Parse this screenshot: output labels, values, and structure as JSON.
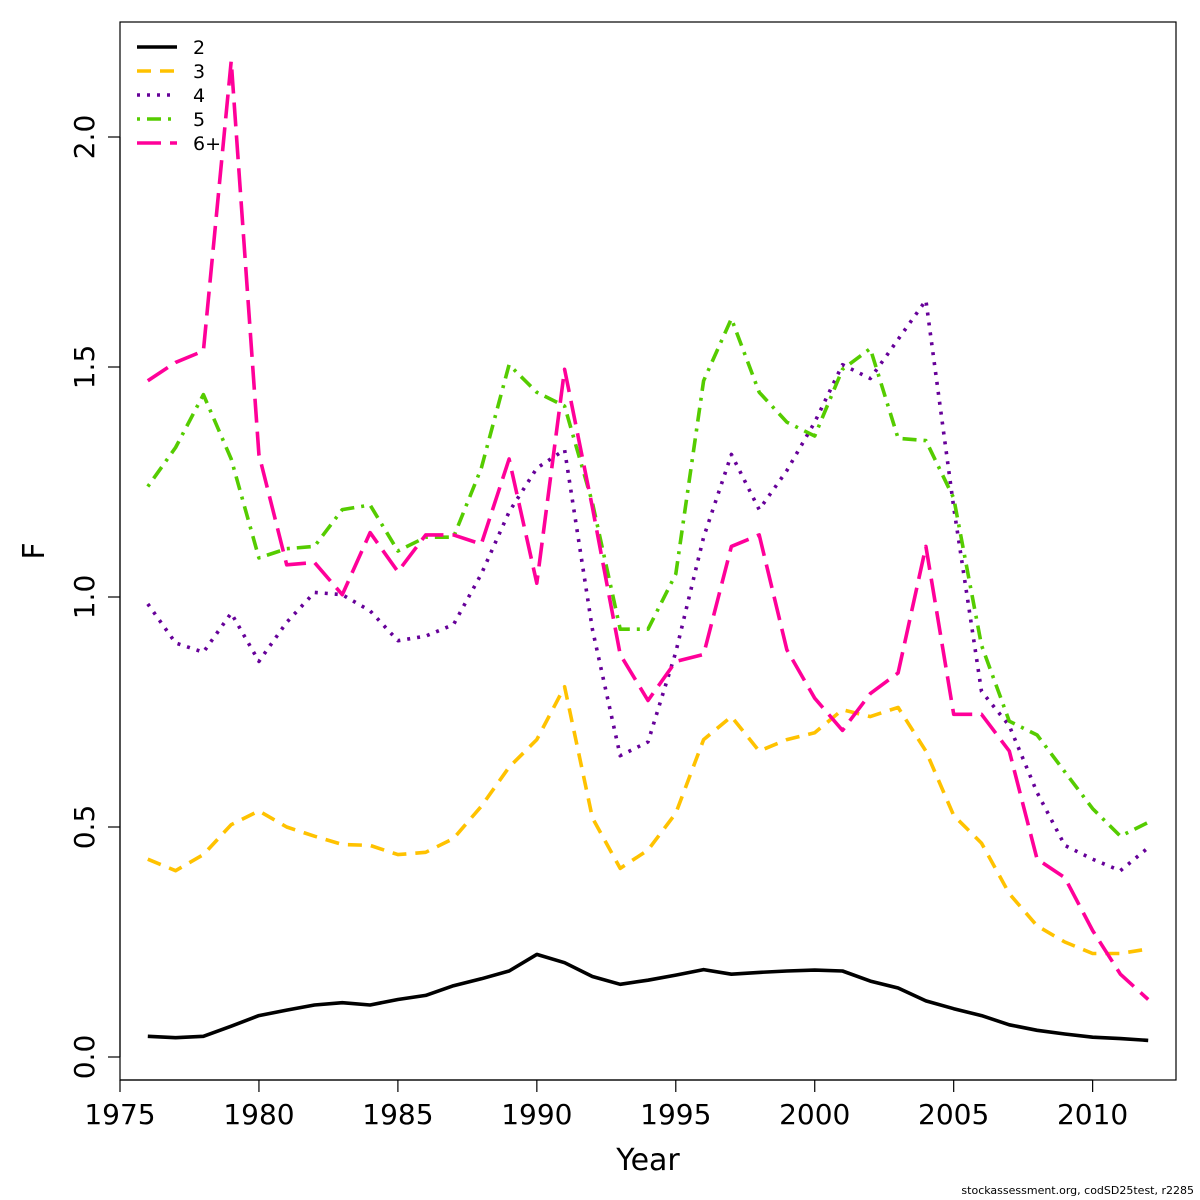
{
  "chart_data": {
    "type": "line",
    "xlabel": "Year",
    "ylabel": "F",
    "xlim": [
      1975,
      2013
    ],
    "ylim": [
      -0.05,
      2.25
    ],
    "x_ticks": [
      1975,
      1980,
      1985,
      1990,
      1995,
      2000,
      2005,
      2010
    ],
    "x_tick_labels": [
      "1975",
      "1980",
      "1985",
      "1990",
      "1995",
      "2000",
      "2005",
      "2010"
    ],
    "y_ticks": [
      0,
      0.5,
      1,
      1.5,
      2
    ],
    "y_tick_labels": [
      "0.0",
      "0.5",
      "1.0",
      "1.5",
      "2.0"
    ],
    "grid": false,
    "legend_position": "top-left",
    "x": [
      1976,
      1977,
      1978,
      1979,
      1980,
      1981,
      1982,
      1983,
      1984,
      1985,
      1986,
      1987,
      1988,
      1989,
      1990,
      1991,
      1992,
      1993,
      1994,
      1995,
      1996,
      1997,
      1998,
      1999,
      2000,
      2001,
      2002,
      2003,
      2004,
      2005,
      2006,
      2007,
      2008,
      2009,
      2010,
      2011,
      2012
    ],
    "series": [
      {
        "name": "2",
        "color": "#000000",
        "dash": "solid",
        "values": [
          0.045,
          0.042,
          0.045,
          0.067,
          0.09,
          0.102,
          0.113,
          0.118,
          0.113,
          0.125,
          0.134,
          0.155,
          0.17,
          0.187,
          0.223,
          0.205,
          0.175,
          0.158,
          0.167,
          0.178,
          0.19,
          0.18,
          0.184,
          0.187,
          0.189,
          0.187,
          0.165,
          0.15,
          0.122,
          0.105,
          0.09,
          0.07,
          0.058,
          0.05,
          0.043,
          0.04,
          0.036
        ]
      },
      {
        "name": "3",
        "color": "#FFC200",
        "dash": "dashed",
        "values": [
          0.43,
          0.405,
          0.44,
          0.505,
          0.535,
          0.5,
          0.48,
          0.462,
          0.46,
          0.44,
          0.445,
          0.475,
          0.545,
          0.63,
          0.69,
          0.805,
          0.52,
          0.41,
          0.45,
          0.53,
          0.69,
          0.74,
          0.665,
          0.69,
          0.705,
          0.755,
          0.74,
          0.76,
          0.665,
          0.525,
          0.465,
          0.355,
          0.285,
          0.25,
          0.225,
          0.225,
          0.235
        ]
      },
      {
        "name": "4",
        "color": "#660099",
        "dash": "dotted",
        "values": [
          0.985,
          0.9,
          0.88,
          0.965,
          0.86,
          0.945,
          1.01,
          1.005,
          0.97,
          0.905,
          0.915,
          0.94,
          1.05,
          1.185,
          1.28,
          1.32,
          0.93,
          0.655,
          0.685,
          0.88,
          1.13,
          1.31,
          1.19,
          1.275,
          1.38,
          1.505,
          1.475,
          1.56,
          1.645,
          1.195,
          0.795,
          0.72,
          0.575,
          0.46,
          0.43,
          0.405,
          0.455
        ]
      },
      {
        "name": "5",
        "color": "#55CC00",
        "dash": "dotdash",
        "values": [
          1.24,
          1.325,
          1.44,
          1.3,
          1.085,
          1.105,
          1.11,
          1.19,
          1.2,
          1.1,
          1.13,
          1.13,
          1.28,
          1.505,
          1.445,
          1.415,
          1.205,
          0.93,
          0.93,
          1.05,
          1.47,
          1.605,
          1.445,
          1.38,
          1.35,
          1.495,
          1.54,
          1.345,
          1.34,
          1.215,
          0.895,
          0.73,
          0.7,
          0.62,
          0.54,
          0.48,
          0.51
        ]
      },
      {
        "name": "6+",
        "color": "#FF0099",
        "dash": "longdash",
        "values": [
          1.47,
          1.51,
          1.535,
          2.165,
          1.31,
          1.07,
          1.075,
          1.005,
          1.14,
          1.055,
          1.135,
          1.135,
          1.115,
          1.3,
          1.03,
          1.495,
          1.195,
          0.875,
          0.775,
          0.86,
          0.875,
          1.11,
          1.135,
          0.885,
          0.78,
          0.71,
          0.79,
          0.835,
          1.11,
          0.745,
          0.745,
          0.665,
          0.43,
          0.39,
          0.275,
          0.18,
          0.125
        ]
      }
    ]
  },
  "footnote": "stockassessment.org, codSD25test, r2285"
}
